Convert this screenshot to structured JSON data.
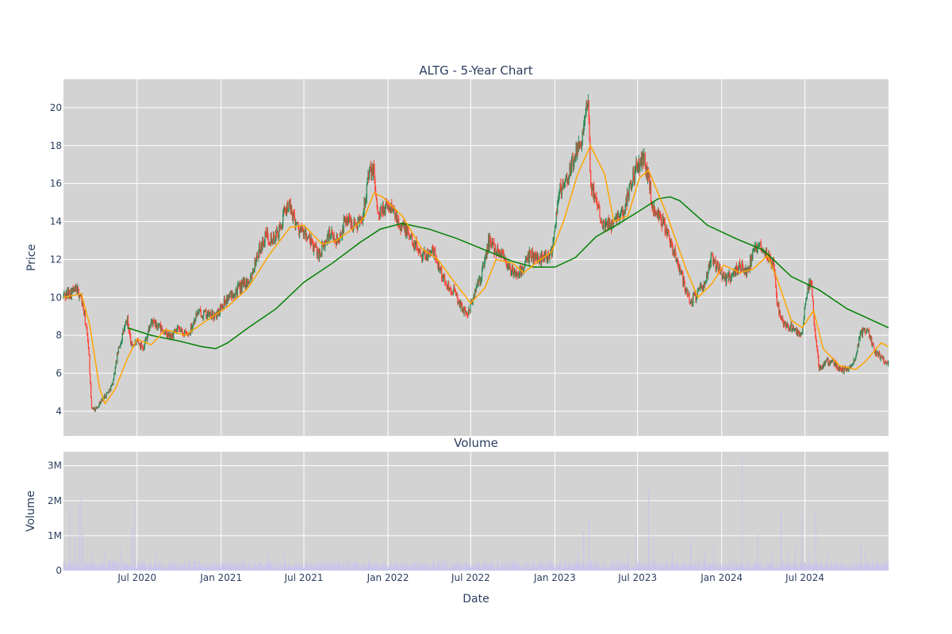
{
  "chart_data": [
    {
      "type": "candlestick",
      "title": "ALTG - 5-Year Chart",
      "ylabel": "Price",
      "ylim": [
        2.7,
        21.5
      ],
      "yticks": [
        4,
        6,
        8,
        10,
        12,
        14,
        16,
        18,
        20
      ],
      "x_range": [
        "2020-01-22",
        "2024-12-31"
      ],
      "grid": true,
      "colors": {
        "up": "#2e8b57",
        "down": "#ff4136",
        "ma_short": "#ffa500",
        "ma_long": "#008000",
        "plot_bg": "#d3d3d3"
      },
      "price_path": [
        [
          "2020-01-22",
          10.1
        ],
        [
          "2020-02-20",
          10.4
        ],
        [
          "2020-03-01",
          10.0
        ],
        [
          "2020-03-10",
          8.7
        ],
        [
          "2020-03-17",
          7.4
        ],
        [
          "2020-03-23",
          4.2
        ],
        [
          "2020-04-01",
          4.1
        ],
        [
          "2020-04-15",
          4.6
        ],
        [
          "2020-04-28",
          5.0
        ],
        [
          "2020-05-08",
          5.4
        ],
        [
          "2020-05-20",
          7.1
        ],
        [
          "2020-06-01",
          8.2
        ],
        [
          "2020-06-10",
          8.8
        ],
        [
          "2020-06-18",
          7.5
        ],
        [
          "2020-07-01",
          7.6
        ],
        [
          "2020-07-15",
          7.4
        ],
        [
          "2020-08-01",
          8.7
        ],
        [
          "2020-08-20",
          8.4
        ],
        [
          "2020-09-10",
          7.9
        ],
        [
          "2020-10-01",
          8.3
        ],
        [
          "2020-10-20",
          8.0
        ],
        [
          "2020-11-10",
          9.2
        ],
        [
          "2020-12-01",
          9.1
        ],
        [
          "2020-12-20",
          9.0
        ],
        [
          "2021-01-05",
          9.7
        ],
        [
          "2021-01-25",
          10.2
        ],
        [
          "2021-02-15",
          10.6
        ],
        [
          "2021-03-05",
          11.0
        ],
        [
          "2021-03-25",
          12.5
        ],
        [
          "2021-04-10",
          13.3
        ],
        [
          "2021-04-25",
          13.0
        ],
        [
          "2021-05-10",
          13.6
        ],
        [
          "2021-05-25",
          14.9
        ],
        [
          "2021-06-05",
          14.5
        ],
        [
          "2021-06-20",
          13.6
        ],
        [
          "2021-07-05",
          13.3
        ],
        [
          "2021-07-20",
          12.7
        ],
        [
          "2021-08-05",
          12.3
        ],
        [
          "2021-08-25",
          13.3
        ],
        [
          "2021-09-15",
          13.0
        ],
        [
          "2021-10-01",
          14.2
        ],
        [
          "2021-10-20",
          13.8
        ],
        [
          "2021-11-05",
          14.2
        ],
        [
          "2021-11-20",
          16.5
        ],
        [
          "2021-12-01",
          16.7
        ],
        [
          "2021-12-10",
          14.2
        ],
        [
          "2021-12-25",
          14.8
        ],
        [
          "2022-01-10",
          14.7
        ],
        [
          "2022-01-25",
          14.0
        ],
        [
          "2022-02-10",
          13.5
        ],
        [
          "2022-03-01",
          12.8
        ],
        [
          "2022-03-20",
          12.2
        ],
        [
          "2022-04-10",
          12.4
        ],
        [
          "2022-04-25",
          11.5
        ],
        [
          "2022-05-05",
          10.8
        ],
        [
          "2022-05-25",
          10.3
        ],
        [
          "2022-06-10",
          9.5
        ],
        [
          "2022-06-25",
          9.1
        ],
        [
          "2022-07-10",
          10.3
        ],
        [
          "2022-07-25",
          11.2
        ],
        [
          "2022-08-10",
          13.0
        ],
        [
          "2022-08-25",
          12.5
        ],
        [
          "2022-09-10",
          12.3
        ],
        [
          "2022-09-25",
          11.4
        ],
        [
          "2022-10-10",
          11.2
        ],
        [
          "2022-10-25",
          11.6
        ],
        [
          "2022-11-10",
          12.3
        ],
        [
          "2022-11-25",
          12.0
        ],
        [
          "2022-12-10",
          12.2
        ],
        [
          "2022-12-25",
          12.4
        ],
        [
          "2023-01-10",
          15.6
        ],
        [
          "2023-01-25",
          16.0
        ],
        [
          "2023-02-10",
          17.2
        ],
        [
          "2023-02-25",
          18.0
        ],
        [
          "2023-03-10",
          19.5
        ],
        [
          "2023-03-15",
          20.3
        ],
        [
          "2023-03-20",
          16.0
        ],
        [
          "2023-04-01",
          15.2
        ],
        [
          "2023-04-15",
          14.0
        ],
        [
          "2023-05-01",
          13.8
        ],
        [
          "2023-05-15",
          14.3
        ],
        [
          "2023-06-01",
          14.5
        ],
        [
          "2023-06-15",
          16.0
        ],
        [
          "2023-07-01",
          17.0
        ],
        [
          "2023-07-15",
          17.2
        ],
        [
          "2023-07-25",
          16.3
        ],
        [
          "2023-08-05",
          14.5
        ],
        [
          "2023-08-20",
          14.2
        ],
        [
          "2023-09-05",
          13.3
        ],
        [
          "2023-09-25",
          12.0
        ],
        [
          "2023-10-10",
          10.8
        ],
        [
          "2023-10-25",
          9.7
        ],
        [
          "2023-11-10",
          10.3
        ],
        [
          "2023-11-25",
          10.6
        ],
        [
          "2023-12-10",
          12.2
        ],
        [
          "2023-12-25",
          11.5
        ],
        [
          "2024-01-10",
          11.0
        ],
        [
          "2024-01-25",
          11.2
        ],
        [
          "2024-02-10",
          11.7
        ],
        [
          "2024-02-25",
          11.3
        ],
        [
          "2024-03-10",
          12.3
        ],
        [
          "2024-03-25",
          12.8
        ],
        [
          "2024-04-10",
          12.3
        ],
        [
          "2024-04-25",
          11.7
        ],
        [
          "2024-05-01",
          9.8
        ],
        [
          "2024-05-10",
          8.8
        ],
        [
          "2024-05-25",
          8.5
        ],
        [
          "2024-06-10",
          8.2
        ],
        [
          "2024-06-25",
          8.1
        ],
        [
          "2024-07-05",
          10.3
        ],
        [
          "2024-07-15",
          10.8
        ],
        [
          "2024-07-22",
          8.5
        ],
        [
          "2024-08-01",
          6.2
        ],
        [
          "2024-08-15",
          6.6
        ],
        [
          "2024-09-01",
          6.6
        ],
        [
          "2024-09-15",
          6.2
        ],
        [
          "2024-10-01",
          6.2
        ],
        [
          "2024-10-15",
          6.5
        ],
        [
          "2024-11-01",
          8.1
        ],
        [
          "2024-11-15",
          8.3
        ],
        [
          "2024-12-01",
          7.2
        ],
        [
          "2024-12-15",
          6.8
        ],
        [
          "2024-12-31",
          6.5
        ]
      ],
      "ma_short": [
        [
          "2020-01-22",
          10.0
        ],
        [
          "2020-03-01",
          10.2
        ],
        [
          "2020-03-20",
          8.5
        ],
        [
          "2020-04-10",
          5.2
        ],
        [
          "2020-04-22",
          4.4
        ],
        [
          "2020-05-15",
          5.2
        ],
        [
          "2020-06-10",
          6.8
        ],
        [
          "2020-07-01",
          7.8
        ],
        [
          "2020-08-01",
          7.5
        ],
        [
          "2020-09-01",
          8.3
        ],
        [
          "2020-10-15",
          8.0
        ],
        [
          "2020-12-01",
          8.8
        ],
        [
          "2021-01-15",
          9.5
        ],
        [
          "2021-03-01",
          10.5
        ],
        [
          "2021-04-15",
          12.2
        ],
        [
          "2021-06-01",
          13.7
        ],
        [
          "2021-07-01",
          13.8
        ],
        [
          "2021-08-10",
          12.8
        ],
        [
          "2021-09-10",
          13.0
        ],
        [
          "2021-10-15",
          13.6
        ],
        [
          "2021-11-10",
          14.2
        ],
        [
          "2021-12-01",
          15.5
        ],
        [
          "2021-12-20",
          15.3
        ],
        [
          "2022-02-01",
          14.3
        ],
        [
          "2022-03-15",
          12.6
        ],
        [
          "2022-04-20",
          12.0
        ],
        [
          "2022-05-20",
          11.0
        ],
        [
          "2022-07-01",
          9.7
        ],
        [
          "2022-08-01",
          10.5
        ],
        [
          "2022-08-25",
          12.0
        ],
        [
          "2022-10-01",
          11.8
        ],
        [
          "2022-10-25",
          11.3
        ],
        [
          "2022-12-01",
          12.0
        ],
        [
          "2022-12-25",
          12.4
        ],
        [
          "2023-01-20",
          14.0
        ],
        [
          "2023-02-20",
          16.5
        ],
        [
          "2023-03-20",
          18.0
        ],
        [
          "2023-04-20",
          16.5
        ],
        [
          "2023-05-10",
          14.0
        ],
        [
          "2023-06-10",
          14.3
        ],
        [
          "2023-07-05",
          16.3
        ],
        [
          "2023-07-25",
          16.7
        ],
        [
          "2023-09-01",
          14.5
        ],
        [
          "2023-10-15",
          11.5
        ],
        [
          "2023-11-10",
          10.0
        ],
        [
          "2023-12-10",
          10.7
        ],
        [
          "2024-01-05",
          11.7
        ],
        [
          "2024-02-10",
          11.3
        ],
        [
          "2024-03-10",
          11.5
        ],
        [
          "2024-04-10",
          12.2
        ],
        [
          "2024-05-01",
          11.0
        ],
        [
          "2024-06-01",
          8.8
        ],
        [
          "2024-06-25",
          8.4
        ],
        [
          "2024-07-20",
          9.3
        ],
        [
          "2024-08-10",
          7.3
        ],
        [
          "2024-09-15",
          6.4
        ],
        [
          "2024-10-20",
          6.2
        ],
        [
          "2024-11-10",
          6.6
        ],
        [
          "2024-12-15",
          7.6
        ],
        [
          "2024-12-31",
          7.4
        ]
      ],
      "ma_long": [
        [
          "2020-06-10",
          8.4
        ],
        [
          "2020-08-01",
          8.0
        ],
        [
          "2020-10-01",
          7.7
        ],
        [
          "2020-11-20",
          7.4
        ],
        [
          "2020-12-20",
          7.3
        ],
        [
          "2021-01-15",
          7.6
        ],
        [
          "2021-03-01",
          8.4
        ],
        [
          "2021-05-01",
          9.4
        ],
        [
          "2021-07-01",
          10.8
        ],
        [
          "2021-09-01",
          11.8
        ],
        [
          "2021-11-01",
          12.9
        ],
        [
          "2021-12-15",
          13.6
        ],
        [
          "2022-02-01",
          13.9
        ],
        [
          "2022-04-01",
          13.6
        ],
        [
          "2022-06-01",
          13.1
        ],
        [
          "2022-08-01",
          12.5
        ],
        [
          "2022-10-01",
          11.9
        ],
        [
          "2022-11-15",
          11.6
        ],
        [
          "2023-01-01",
          11.6
        ],
        [
          "2023-02-15",
          12.1
        ],
        [
          "2023-04-01",
          13.2
        ],
        [
          "2023-05-15",
          13.8
        ],
        [
          "2023-07-01",
          14.5
        ],
        [
          "2023-08-15",
          15.2
        ],
        [
          "2023-09-10",
          15.3
        ],
        [
          "2023-10-01",
          15.1
        ],
        [
          "2023-12-01",
          13.8
        ],
        [
          "2024-02-01",
          13.1
        ],
        [
          "2024-04-01",
          12.5
        ],
        [
          "2024-06-01",
          11.1
        ],
        [
          "2024-08-01",
          10.4
        ],
        [
          "2024-10-01",
          9.4
        ],
        [
          "2024-12-31",
          8.4
        ]
      ]
    },
    {
      "type": "bar",
      "title": "Volume",
      "xlabel": "Date",
      "ylabel": "Volume",
      "ylim": [
        0,
        3400000
      ],
      "yticks": [
        0,
        1000000,
        2000000,
        3000000
      ],
      "ytick_labels": [
        "0",
        "1M",
        "2M",
        "3M"
      ],
      "xticks": [
        "2020-07-01",
        "2021-01-01",
        "2021-07-01",
        "2022-01-01",
        "2022-07-01",
        "2023-01-01",
        "2023-07-01",
        "2024-01-01",
        "2024-07-01"
      ],
      "xtick_labels": [
        "Jul 2020",
        "Jan 2021",
        "Jul 2021",
        "Jan 2022",
        "Jul 2022",
        "Jan 2023",
        "Jul 2023",
        "Jan 2024",
        "Jul 2024"
      ],
      "bar_color": "#c9c4ec",
      "spikes": [
        [
          "2020-02-05",
          1800000
        ],
        [
          "2020-02-15",
          1000000
        ],
        [
          "2020-02-25",
          1900000
        ],
        [
          "2020-03-01",
          2100000
        ],
        [
          "2020-03-05",
          1100000
        ],
        [
          "2020-03-12",
          300000
        ],
        [
          "2020-03-25",
          500000
        ],
        [
          "2020-04-20",
          500000
        ],
        [
          "2020-05-10",
          300000
        ],
        [
          "2020-05-25",
          700000
        ],
        [
          "2020-06-20",
          1200000
        ],
        [
          "2020-06-25",
          2000000
        ],
        [
          "2020-08-10",
          450000
        ],
        [
          "2021-04-15",
          480000
        ],
        [
          "2021-05-20",
          450000
        ],
        [
          "2021-11-20",
          400000
        ],
        [
          "2022-04-10",
          300000
        ],
        [
          "2022-07-20",
          250000
        ],
        [
          "2022-12-20",
          300000
        ],
        [
          "2023-02-20",
          500000
        ],
        [
          "2023-03-05",
          1100000
        ],
        [
          "2023-03-17",
          1450000
        ],
        [
          "2023-05-15",
          400000
        ],
        [
          "2023-06-10",
          600000
        ],
        [
          "2023-06-28",
          1050000
        ],
        [
          "2023-07-25",
          2300000
        ],
        [
          "2023-08-05",
          1000000
        ],
        [
          "2023-09-15",
          550000
        ],
        [
          "2023-10-25",
          900000
        ],
        [
          "2023-11-25",
          500000
        ],
        [
          "2023-12-15",
          850000
        ],
        [
          "2024-02-15",
          3200000
        ],
        [
          "2024-03-20",
          1050000
        ],
        [
          "2024-04-20",
          450000
        ],
        [
          "2024-05-10",
          1700000
        ],
        [
          "2024-05-25",
          500000
        ],
        [
          "2024-06-10",
          700000
        ],
        [
          "2024-06-25",
          1600000
        ],
        [
          "2024-07-10",
          500000
        ],
        [
          "2024-07-25",
          1700000
        ],
        [
          "2024-08-20",
          600000
        ],
        [
          "2024-11-01",
          850000
        ],
        [
          "2024-11-10",
          600000
        ]
      ]
    }
  ]
}
